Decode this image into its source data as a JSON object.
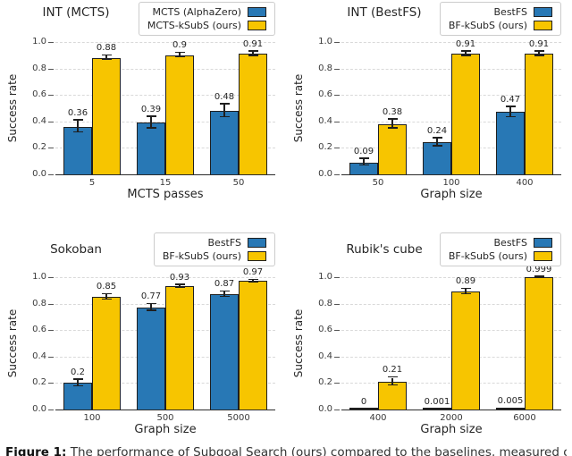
{
  "style": {
    "blue": "#2878b5",
    "yellow": "#f7c500",
    "bar_edge": "#1f1f1f",
    "grid_color": "#d9d9d9",
    "spine_color": "#2b2b2b",
    "text_color": "#262626",
    "legend_border": "#cccccc",
    "background": "#ffffff"
  },
  "caption": {
    "prefix": "Figure 1:",
    "text": " The performance of Subgoal Search (ours) compared to the baselines, measured on INT (with the rest of N"
  },
  "chart_data": [
    {
      "type": "bar",
      "title": "INT (MCTS)",
      "xlabel": "MCTS passes",
      "ylabel": "Success rate",
      "ylim": [
        0,
        1.0
      ],
      "grid": true,
      "legend_position": "upper right",
      "yticks": [
        "0.0",
        "0.2",
        "0.4",
        "0.6",
        "0.8",
        "1.0"
      ],
      "categories": [
        "5",
        "15",
        "50"
      ],
      "series": [
        {
          "name": "MCTS (AlphaZero)",
          "color": "#2878b5",
          "values": [
            0.36,
            0.39,
            0.48
          ],
          "labels": [
            "0.36",
            "0.39",
            "0.48"
          ],
          "err": [
            0.045,
            0.045,
            0.05
          ]
        },
        {
          "name": "MCTS-kSubS (ours)",
          "color": "#f7c500",
          "values": [
            0.88,
            0.9,
            0.91
          ],
          "labels": [
            "0.88",
            "0.9",
            "0.91"
          ],
          "err": [
            0.018,
            0.018,
            0.018
          ]
        }
      ]
    },
    {
      "type": "bar",
      "title": "INT (BestFS)",
      "xlabel": "Graph size",
      "ylabel": "Success rate",
      "ylim": [
        0,
        1.0
      ],
      "grid": true,
      "legend_position": "upper right",
      "yticks": [
        "0.0",
        "0.2",
        "0.4",
        "0.6",
        "0.8",
        "1.0"
      ],
      "categories": [
        "50",
        "100",
        "400"
      ],
      "series": [
        {
          "name": "BestFS",
          "color": "#2878b5",
          "values": [
            0.09,
            0.24,
            0.47
          ],
          "labels": [
            "0.09",
            "0.24",
            "0.47"
          ],
          "err": [
            0.025,
            0.03,
            0.04
          ]
        },
        {
          "name": "BF-kSubS (ours)",
          "color": "#f7c500",
          "values": [
            0.38,
            0.91,
            0.91
          ],
          "labels": [
            "0.38",
            "0.91",
            "0.91"
          ],
          "err": [
            0.035,
            0.018,
            0.018
          ]
        }
      ]
    },
    {
      "type": "bar",
      "title": "Sokoban",
      "xlabel": "Graph size",
      "ylabel": "Success rate",
      "ylim": [
        0,
        1.0
      ],
      "grid": true,
      "legend_position": "upper right",
      "yticks": [
        "0.0",
        "0.2",
        "0.4",
        "0.6",
        "0.8",
        "1.0"
      ],
      "categories": [
        "100",
        "500",
        "5000"
      ],
      "series": [
        {
          "name": "BestFS",
          "color": "#2878b5",
          "values": [
            0.2,
            0.77,
            0.87
          ],
          "labels": [
            "0.2",
            "0.77",
            "0.87"
          ],
          "err": [
            0.025,
            0.025,
            0.02
          ]
        },
        {
          "name": "BF-kSubS (ours)",
          "color": "#f7c500",
          "values": [
            0.85,
            0.93,
            0.97
          ],
          "labels": [
            "0.85",
            "0.93",
            "0.97"
          ],
          "err": [
            0.02,
            0.012,
            0.008
          ]
        }
      ]
    },
    {
      "type": "bar",
      "title": "Rubik's cube",
      "xlabel": "Graph size",
      "ylabel": "Success rate",
      "ylim": [
        0,
        1.0
      ],
      "grid": true,
      "legend_position": "upper right",
      "yticks": [
        "0.0",
        "0.2",
        "0.4",
        "0.6",
        "0.8",
        "1.0"
      ],
      "categories": [
        "400",
        "2000",
        "6000"
      ],
      "series": [
        {
          "name": "BestFS",
          "color": "#2878b5",
          "values": [
            0,
            0.001,
            0.005
          ],
          "labels": [
            "0",
            "0.001",
            "0.005"
          ],
          "err": [
            0,
            0,
            0
          ]
        },
        {
          "name": "BF-kSubS (ours)",
          "color": "#f7c500",
          "values": [
            0.21,
            0.89,
            0.999
          ],
          "labels": [
            "0.21",
            "0.89",
            "0.999"
          ],
          "err": [
            0.03,
            0.02,
            0.004
          ]
        }
      ]
    }
  ]
}
